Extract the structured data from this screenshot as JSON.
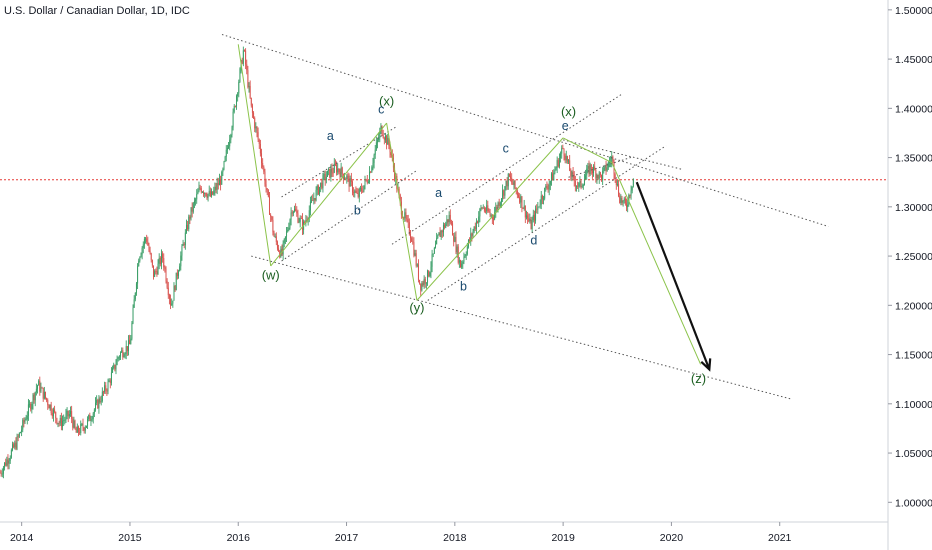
{
  "chart_data": {
    "type": "candlestick",
    "title": "U.S. Dollar / Canadian Dollar, 1D, IDC",
    "x_ticks": [
      "2014",
      "2015",
      "2016",
      "2017",
      "2018",
      "2019",
      "2020",
      "2021"
    ],
    "x_range": [
      2013.8,
      2022.0
    ],
    "y_ticks": [
      "1.00000",
      "1.05000",
      "1.10000",
      "1.15000",
      "1.20000",
      "1.25000",
      "1.30000",
      "1.35000",
      "1.40000",
      "1.45000",
      "1.50000"
    ],
    "y_range": [
      0.98,
      1.51
    ],
    "price_path": [
      [
        2013.8,
        1.03
      ],
      [
        2013.95,
        1.06
      ],
      [
        2014.05,
        1.09
      ],
      [
        2014.15,
        1.12
      ],
      [
        2014.25,
        1.1
      ],
      [
        2014.35,
        1.08
      ],
      [
        2014.45,
        1.09
      ],
      [
        2014.5,
        1.07
      ],
      [
        2014.6,
        1.08
      ],
      [
        2014.7,
        1.1
      ],
      [
        2014.8,
        1.12
      ],
      [
        2014.9,
        1.15
      ],
      [
        2015.0,
        1.16
      ],
      [
        2015.08,
        1.25
      ],
      [
        2015.15,
        1.27
      ],
      [
        2015.22,
        1.23
      ],
      [
        2015.3,
        1.25
      ],
      [
        2015.38,
        1.2
      ],
      [
        2015.45,
        1.24
      ],
      [
        2015.55,
        1.29
      ],
      [
        2015.65,
        1.32
      ],
      [
        2015.75,
        1.31
      ],
      [
        2015.85,
        1.33
      ],
      [
        2015.95,
        1.39
      ],
      [
        2016.05,
        1.46
      ],
      [
        2016.12,
        1.4
      ],
      [
        2016.2,
        1.36
      ],
      [
        2016.27,
        1.31
      ],
      [
        2016.33,
        1.27
      ],
      [
        2016.4,
        1.25
      ],
      [
        2016.5,
        1.3
      ],
      [
        2016.6,
        1.28
      ],
      [
        2016.7,
        1.31
      ],
      [
        2016.8,
        1.33
      ],
      [
        2016.9,
        1.34
      ],
      [
        2017.0,
        1.33
      ],
      [
        2017.1,
        1.31
      ],
      [
        2017.2,
        1.33
      ],
      [
        2017.32,
        1.38
      ],
      [
        2017.4,
        1.36
      ],
      [
        2017.5,
        1.3
      ],
      [
        2017.6,
        1.27
      ],
      [
        2017.68,
        1.22
      ],
      [
        2017.75,
        1.23
      ],
      [
        2017.85,
        1.27
      ],
      [
        2017.95,
        1.29
      ],
      [
        2018.05,
        1.24
      ],
      [
        2018.15,
        1.27
      ],
      [
        2018.25,
        1.3
      ],
      [
        2018.35,
        1.29
      ],
      [
        2018.5,
        1.33
      ],
      [
        2018.6,
        1.31
      ],
      [
        2018.7,
        1.28
      ],
      [
        2018.8,
        1.31
      ],
      [
        2018.9,
        1.33
      ],
      [
        2019.0,
        1.36
      ],
      [
        2019.08,
        1.33
      ],
      [
        2019.15,
        1.32
      ],
      [
        2019.25,
        1.34
      ],
      [
        2019.35,
        1.33
      ],
      [
        2019.45,
        1.35
      ],
      [
        2019.52,
        1.31
      ],
      [
        2019.58,
        1.3
      ],
      [
        2019.65,
        1.33
      ]
    ],
    "current_price_line": 1.3275,
    "wave_labels": [
      {
        "text": "(w)",
        "x": 2016.3,
        "y": 1.226,
        "color": "green"
      },
      {
        "text": "(x)",
        "x": 2017.37,
        "y": 1.403,
        "color": "green"
      },
      {
        "text": "(y)",
        "x": 2017.65,
        "y": 1.193,
        "color": "green"
      },
      {
        "text": "(x)",
        "x": 2019.05,
        "y": 1.392,
        "color": "green"
      },
      {
        "text": "(z)",
        "x": 2020.25,
        "y": 1.121,
        "color": "green"
      },
      {
        "text": "a",
        "x": 2016.85,
        "y": 1.368,
        "color": "blue"
      },
      {
        "text": "b",
        "x": 2017.1,
        "y": 1.292,
        "color": "blue"
      },
      {
        "text": "c",
        "x": 2017.32,
        "y": 1.395,
        "color": "blue"
      },
      {
        "text": "a",
        "x": 2017.85,
        "y": 1.31,
        "color": "blue"
      },
      {
        "text": "b",
        "x": 2018.08,
        "y": 1.215,
        "color": "blue"
      },
      {
        "text": "c",
        "x": 2018.47,
        "y": 1.355,
        "color": "blue"
      },
      {
        "text": "d",
        "x": 2018.73,
        "y": 1.262,
        "color": "blue"
      },
      {
        "text": "e",
        "x": 2019.02,
        "y": 1.378,
        "color": "blue"
      }
    ],
    "trend_lines": [
      {
        "x1": 2015.85,
        "y1": 1.475,
        "x2": 2021.45,
        "y2": 1.28
      },
      {
        "x1": 2016.12,
        "y1": 1.25,
        "x2": 2021.1,
        "y2": 1.105
      },
      {
        "x1": 2016.4,
        "y1": 1.31,
        "x2": 2017.47,
        "y2": 1.382
      },
      {
        "x1": 2016.4,
        "y1": 1.245,
        "x2": 2017.65,
        "y2": 1.337
      },
      {
        "x1": 2017.42,
        "y1": 1.262,
        "x2": 2019.55,
        "y2": 1.415
      },
      {
        "x1": 2017.75,
        "y1": 1.205,
        "x2": 2019.95,
        "y2": 1.362
      },
      {
        "x1": 2019.0,
        "y1": 1.368,
        "x2": 2020.1,
        "y2": 1.338
      },
      {
        "x1": 2019.05,
        "y1": 1.33,
        "x2": 2019.65,
        "y2": 1.351
      }
    ],
    "projection_segments": [
      {
        "x1": 2016.0,
        "y1": 1.465,
        "x2": 2016.3,
        "y2": 1.24
      },
      {
        "x1": 2016.3,
        "y1": 1.24,
        "x2": 2017.37,
        "y2": 1.385
      },
      {
        "x1": 2017.37,
        "y1": 1.385,
        "x2": 2017.65,
        "y2": 1.205
      },
      {
        "x1": 2017.65,
        "y1": 1.205,
        "x2": 2019.0,
        "y2": 1.37
      },
      {
        "x1": 2019.0,
        "y1": 1.37,
        "x2": 2019.45,
        "y2": 1.345
      },
      {
        "x1": 2019.45,
        "y1": 1.345,
        "x2": 2020.27,
        "y2": 1.14
      }
    ],
    "arrow": {
      "x1": 2019.68,
      "y1": 1.325,
      "x2": 2020.35,
      "y2": 1.135
    }
  }
}
